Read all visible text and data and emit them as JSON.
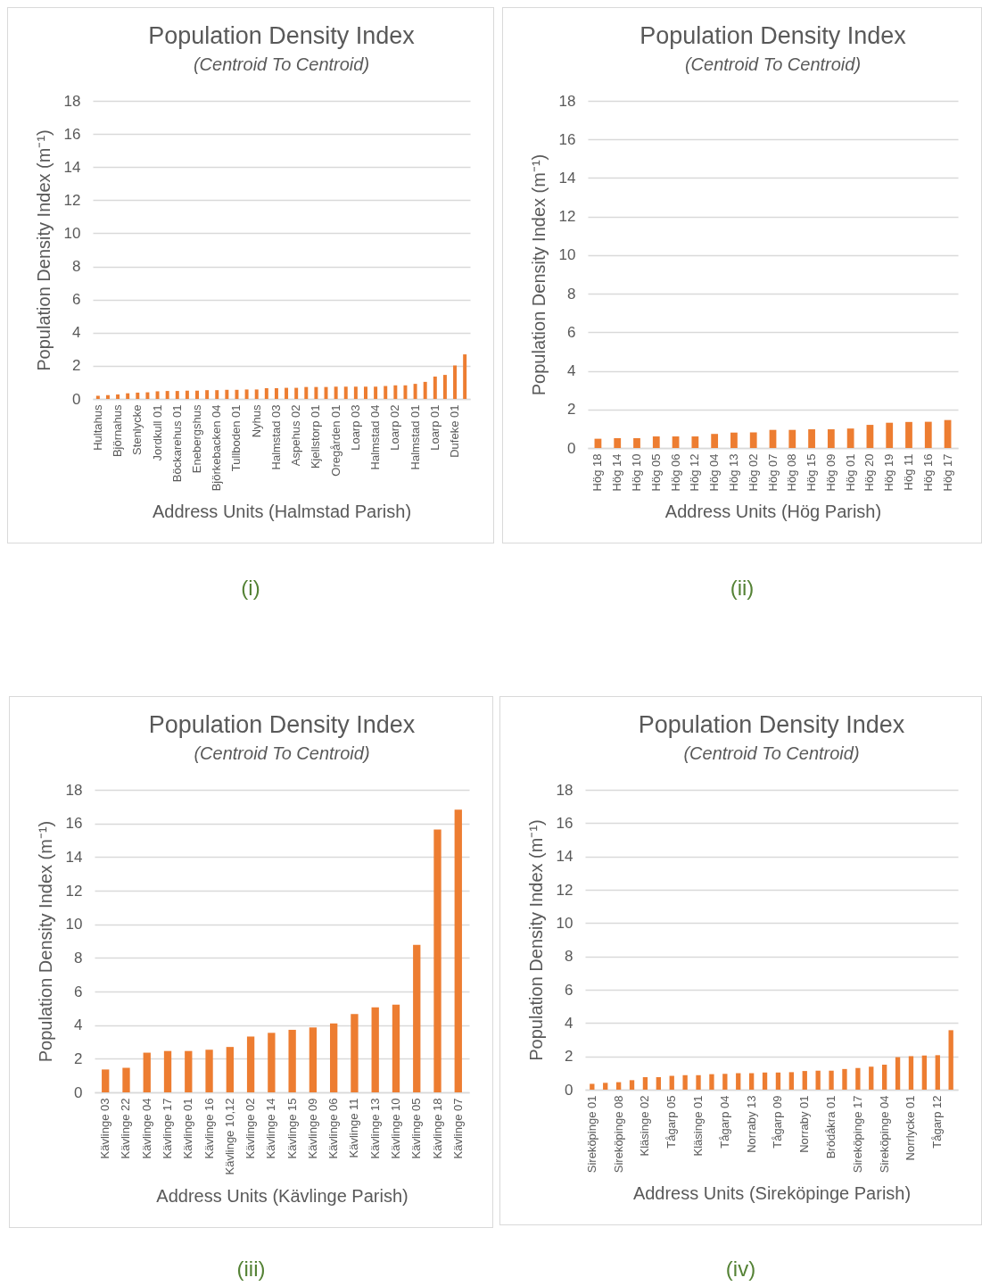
{
  "chart_data": [
    {
      "type": "bar",
      "title": "Population Density Index",
      "subtitle": "(Centroid To Centroid)",
      "xlabel": "Address Units (Halmstad Parish)",
      "ylabel": "Population Density Index (m⁻¹)",
      "categories": [
        "Hultahus",
        null,
        "Björnahus",
        null,
        "Stenlycke",
        null,
        "Jordkull 01",
        null,
        "Böckarehus 01",
        null,
        "Enebergshus",
        null,
        "Björkebacken 04",
        null,
        "Tullboden 01",
        null,
        "Nyhus",
        null,
        "Halmstad 03",
        null,
        "Aspehus 02",
        null,
        "Kjellstorp 01",
        null,
        "Oregården 01",
        null,
        "Loarp 03",
        null,
        "Halmstad 04",
        null,
        "Loarp 02",
        null,
        "Halmstad 01",
        null,
        "Loarp 01",
        null,
        "Dufeke 01",
        null
      ],
      "values": [
        0.19,
        0.23,
        0.27,
        0.34,
        0.38,
        0.4,
        0.46,
        0.48,
        0.48,
        0.5,
        0.5,
        0.53,
        0.53,
        0.55,
        0.55,
        0.57,
        0.57,
        0.65,
        0.65,
        0.67,
        0.67,
        0.72,
        0.72,
        0.72,
        0.74,
        0.74,
        0.74,
        0.74,
        0.74,
        0.78,
        0.82,
        0.82,
        0.91,
        1.03,
        1.35,
        1.45,
        2.02,
        2.69
      ],
      "color": "#ed7d31",
      "ylim": [
        0,
        18
      ],
      "yticks": [
        0,
        2,
        4,
        6,
        8,
        10,
        12,
        14,
        16,
        18
      ],
      "grid": "y",
      "annotations": [
        "(i)"
      ]
    },
    {
      "type": "bar",
      "title": "Population Density Index",
      "subtitle": "(Centroid To Centroid)",
      "xlabel": "Address Units (Hög Parish)",
      "ylabel": "Population Density Index (m⁻¹)",
      "categories": [
        "Hög 18",
        "Hög 14",
        "Hög 10",
        "Hög 05",
        "Hög 06",
        "Hög 12",
        "Hög 04",
        "Hög 13",
        "Hög 02",
        "Hög 07",
        "Hög 08",
        "Hög 15",
        "Hög 09",
        "Hög 01",
        "Hög 20",
        "Hög 19",
        "Hög 11",
        "Hög 16",
        "Hög 17"
      ],
      "values": [
        0.48,
        0.51,
        0.51,
        0.6,
        0.6,
        0.6,
        0.73,
        0.8,
        0.81,
        0.94,
        0.94,
        0.97,
        0.97,
        1.01,
        1.2,
        1.31,
        1.35,
        1.36,
        1.45
      ],
      "color": "#ed7d31",
      "ylim": [
        0,
        18
      ],
      "yticks": [
        0,
        2,
        4,
        6,
        8,
        10,
        12,
        14,
        16,
        18
      ],
      "grid": "y",
      "annotations": [
        "(ii)"
      ]
    },
    {
      "type": "bar",
      "title": "Population Density Index",
      "subtitle": "(Centroid To Centroid)",
      "xlabel": "Address Units (Kävlinge Parish)",
      "ylabel": "Population Density Index (m⁻¹)",
      "categories": [
        "Kävlinge 03",
        "Kävlinge 22",
        "Kävlinge 04",
        "Kävlinge 17",
        "Kävlinge 01",
        "Kävlinge 16",
        "Kävlinge 10,12",
        "Kävlinge 02",
        "Kävlinge 14",
        "Kävlinge 15",
        "Kävlinge 09",
        "Kävlinge 06",
        "Kävlinge 11",
        "Kävlinge 13",
        "Kävlinge 10",
        "Kävlinge 05",
        "Kävlinge 18",
        "Kävlinge 07"
      ],
      "values": [
        1.36,
        1.46,
        2.36,
        2.46,
        2.46,
        2.54,
        2.7,
        3.32,
        3.54,
        3.72,
        3.86,
        4.1,
        4.66,
        5.06,
        5.22,
        8.78,
        15.64,
        16.82
      ],
      "color": "#ed7d31",
      "ylim": [
        0,
        18
      ],
      "yticks": [
        0,
        2,
        4,
        6,
        8,
        10,
        12,
        14,
        16,
        18
      ],
      "grid": "y",
      "annotations": [
        "(iii)"
      ]
    },
    {
      "type": "bar",
      "title": "Population Density Index",
      "subtitle": "(Centroid To Centroid)",
      "xlabel": "Address Units (Sireköpinge Parish)",
      "ylabel": "Population Density Index (m⁻¹)",
      "categories": [
        "Sireköpinge 01",
        null,
        "Sireköpinge 08",
        null,
        "Kläsinge 02",
        null,
        "Tågarp 05",
        null,
        "Kläsinge 01",
        null,
        "Tågarp 04",
        null,
        "Norraby 13",
        null,
        "Tågarp 09",
        null,
        "Norraby 01",
        null,
        "Brödåkra 01",
        null,
        "Sireköpinge 17",
        null,
        "Sireköpinge 04",
        null,
        "Norrlycke 01",
        null,
        "Tågarp 12",
        null
      ],
      "values": [
        0.35,
        0.41,
        0.45,
        0.57,
        0.75,
        0.75,
        0.83,
        0.87,
        0.87,
        0.93,
        0.95,
        0.99,
        0.99,
        1.03,
        1.03,
        1.05,
        1.12,
        1.14,
        1.14,
        1.24,
        1.3,
        1.38,
        1.5,
        1.95,
        2.01,
        2.05,
        2.07,
        3.57
      ],
      "color": "#ed7d31",
      "ylim": [
        0,
        18
      ],
      "yticks": [
        0,
        2,
        4,
        6,
        8,
        10,
        12,
        14,
        16,
        18
      ],
      "grid": "y",
      "annotations": [
        "(iv)"
      ]
    }
  ]
}
